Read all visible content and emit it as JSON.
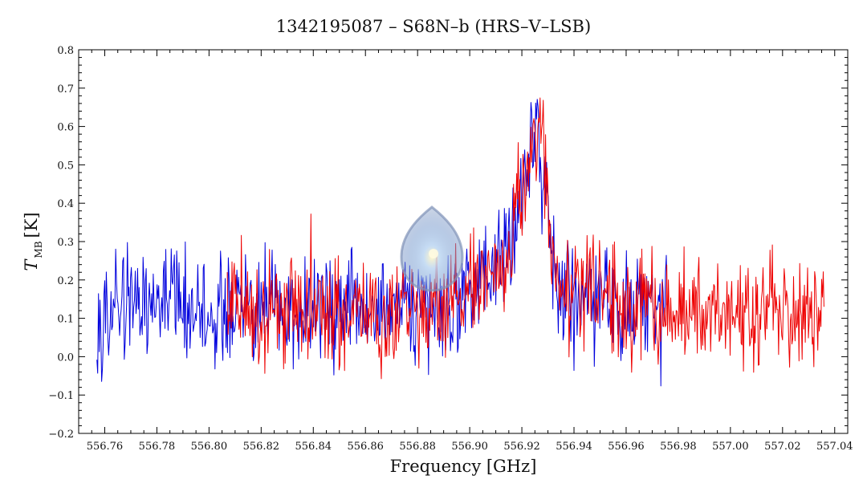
{
  "chart_data": {
    "type": "line",
    "title": "1342195087 – S68N–b (HRS–V–LSB)",
    "xlabel": "Frequency [GHz]",
    "ylabel_main": "T",
    "ylabel_sub": "MB",
    "ylabel_unit": "[K]",
    "xlim": [
      556.75,
      557.045
    ],
    "ylim": [
      -0.2,
      0.8
    ],
    "x_ticks": [
      556.76,
      556.78,
      556.8,
      556.82,
      556.84,
      556.86,
      556.88,
      556.9,
      556.92,
      556.94,
      556.96,
      556.98,
      557.0,
      557.02,
      557.04
    ],
    "x_tick_labels": [
      "556.76",
      "556.78",
      "556.80",
      "556.82",
      "556.84",
      "556.86",
      "556.88",
      "556.90",
      "556.92",
      "556.94",
      "556.96",
      "556.98",
      "557.00",
      "557.02",
      "557.04"
    ],
    "y_ticks": [
      -0.2,
      -0.1,
      0.0,
      0.1,
      0.2,
      0.3,
      0.4,
      0.5,
      0.6,
      0.7,
      0.8
    ],
    "y_tick_labels": [
      "−0.2",
      "−0.1",
      "0.0",
      "0.1",
      "0.2",
      "0.3",
      "0.4",
      "0.5",
      "0.6",
      "0.7",
      "0.8"
    ],
    "series": [
      {
        "color": "#0000dd",
        "x_range": [
          556.757,
          556.976
        ],
        "baseline": 0.12,
        "noise": 0.07,
        "lines": [
          {
            "center": 556.926,
            "width": 0.004,
            "amp": 0.38
          },
          {
            "center": 556.92,
            "width": 0.003,
            "amp": 0.12
          },
          {
            "center": 556.912,
            "width": 0.01,
            "amp": 0.12
          },
          {
            "center": 556.945,
            "width": 0.006,
            "amp": 0.05
          }
        ]
      },
      {
        "color": "#ee0000",
        "x_range": [
          556.807,
          557.036
        ],
        "baseline": 0.12,
        "noise": 0.07,
        "lines": [
          {
            "center": 556.926,
            "width": 0.004,
            "amp": 0.4
          },
          {
            "center": 556.92,
            "width": 0.003,
            "amp": 0.12
          },
          {
            "center": 556.912,
            "width": 0.01,
            "amp": 0.12
          },
          {
            "center": 556.945,
            "width": 0.006,
            "amp": 0.06
          }
        ]
      }
    ]
  },
  "decor": {
    "drop_icon": "water-drop-icon"
  }
}
